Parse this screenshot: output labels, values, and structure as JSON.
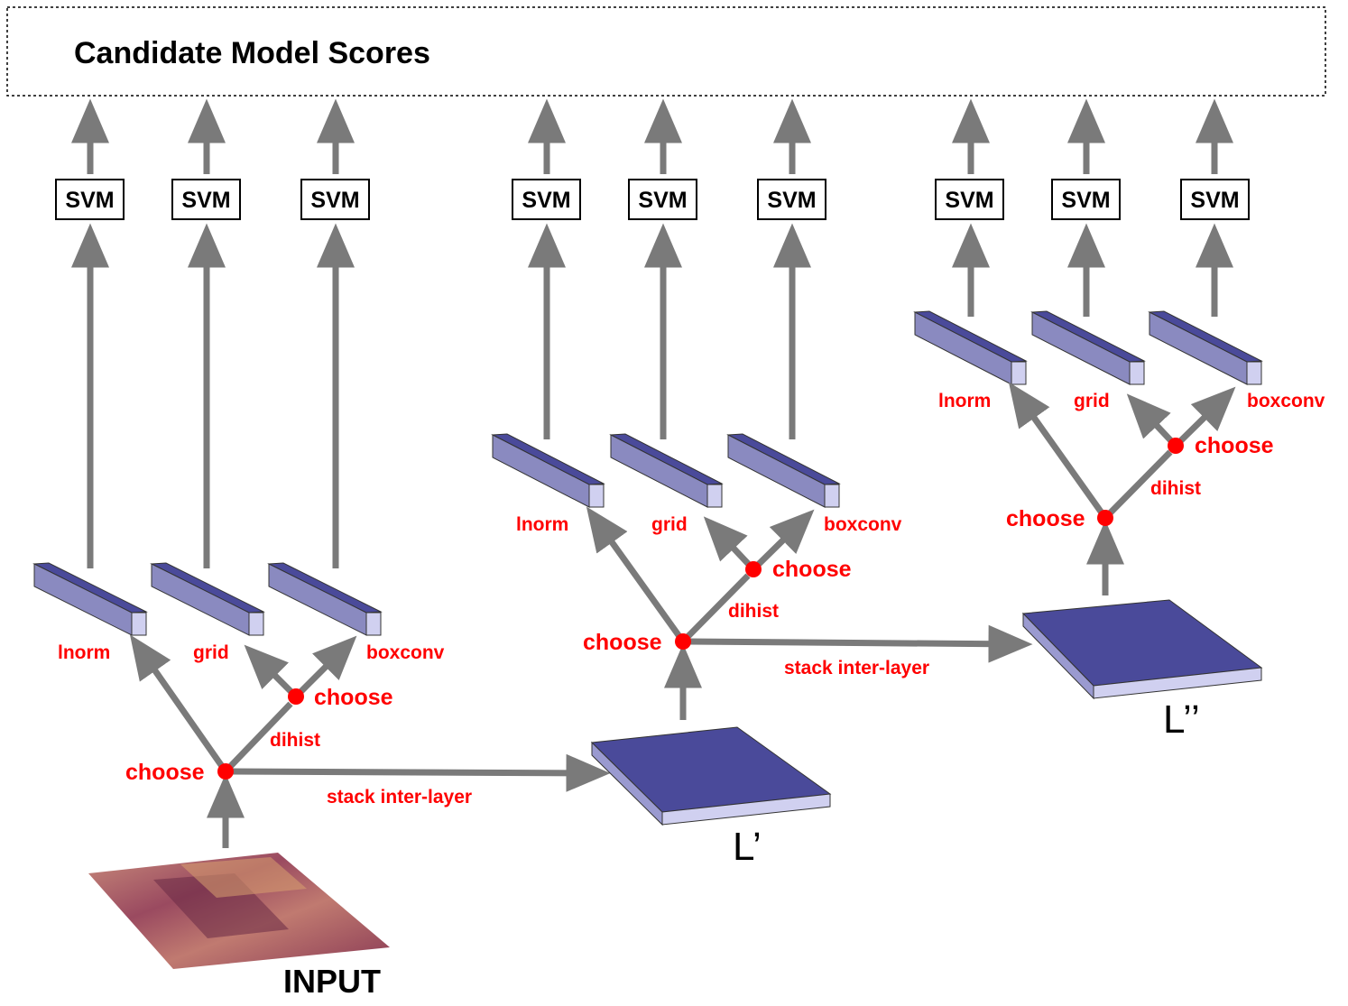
{
  "header": {
    "title": "Candidate Model Scores"
  },
  "svm_label": "SVM",
  "input_label": "INPUT",
  "stages": [
    {
      "branches": [
        "lnorm",
        "grid",
        "boxconv"
      ],
      "choose": "choose",
      "dihist": "dihist",
      "stack": "stack inter-layer"
    },
    {
      "branches": [
        "lnorm",
        "grid",
        "boxconv"
      ],
      "choose": "choose",
      "dihist": "dihist",
      "stack": "stack inter-layer"
    },
    {
      "branches": [
        "lnorm",
        "grid",
        "boxconv"
      ],
      "choose": "choose",
      "dihist": "dihist"
    }
  ],
  "layers": [
    "L’",
    "L’’"
  ],
  "colors": {
    "arrow": "#7a7a7a",
    "node": "#ff0000",
    "label": "#ff0000",
    "layer_top": "#4a4a9a",
    "layer_front": "#d0d0f0"
  }
}
